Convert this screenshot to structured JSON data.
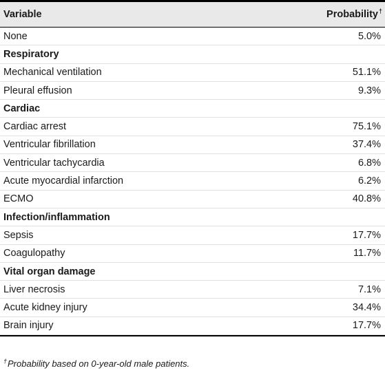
{
  "table": {
    "header": {
      "variable": "Variable",
      "probability": "Probability",
      "probability_mark": "†"
    },
    "rows": [
      {
        "label": "None",
        "value": "5.0%",
        "section": false
      },
      {
        "label": "Respiratory",
        "value": "",
        "section": true
      },
      {
        "label": "Mechanical ventilation",
        "value": "51.1%",
        "section": false
      },
      {
        "label": "Pleural effusion",
        "value": "9.3%",
        "section": false
      },
      {
        "label": "Cardiac",
        "value": "",
        "section": true
      },
      {
        "label": "Cardiac arrest",
        "value": "75.1%",
        "section": false
      },
      {
        "label": "Ventricular fibrillation",
        "value": "37.4%",
        "section": false
      },
      {
        "label": "Ventricular tachycardia",
        "value": "6.8%",
        "section": false
      },
      {
        "label": "Acute myocardial infarction",
        "value": "6.2%",
        "section": false
      },
      {
        "label": "ECMO",
        "value": "40.8%",
        "section": false
      },
      {
        "label": "Infection/inflammation",
        "value": "",
        "section": true
      },
      {
        "label": "Sepsis",
        "value": "17.7%",
        "section": false
      },
      {
        "label": "Coagulopathy",
        "value": "11.7%",
        "section": false
      },
      {
        "label": "Vital organ damage",
        "value": "",
        "section": true
      },
      {
        "label": "Liver necrosis",
        "value": "7.1%",
        "section": false
      },
      {
        "label": "Acute kidney injury",
        "value": "34.4%",
        "section": false
      },
      {
        "label": "Brain injury",
        "value": "17.7%",
        "section": false
      }
    ]
  },
  "footnote": {
    "mark": "†",
    "text": "Probability based on 0-year-old male patients."
  }
}
